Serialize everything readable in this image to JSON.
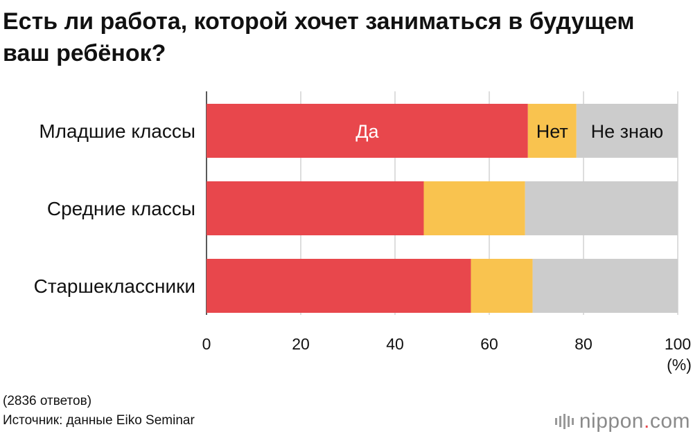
{
  "title": "Есть ли работа, которой хочет заниматься в будущем ваш ребёнок?",
  "notes": {
    "responses": "(2836 ответов)",
    "source": "Источник: данные Eiko Seminar"
  },
  "logo": {
    "name": "nippon",
    "dot": ".",
    "tld": "com"
  },
  "chart_data": {
    "type": "bar",
    "orientation": "horizontal",
    "stacked": true,
    "categories": [
      "Младшие классы",
      "Средние классы",
      "Старшеклассники"
    ],
    "series": [
      {
        "name": "Да",
        "color": "#e8474c",
        "values": [
          68.2,
          46.1,
          56.1
        ]
      },
      {
        "name": "Нет",
        "color": "#f9c34f",
        "values": [
          10.3,
          21.5,
          13.1
        ]
      },
      {
        "name": "Не знаю",
        "color": "#cccccc",
        "values": [
          21.5,
          32.4,
          30.8
        ]
      }
    ],
    "xlim": [
      0,
      100
    ],
    "xticks": [
      0,
      20,
      40,
      60,
      80,
      100
    ],
    "xlabel": "(%)",
    "grid": true,
    "legend": "inline labels on first bar"
  }
}
